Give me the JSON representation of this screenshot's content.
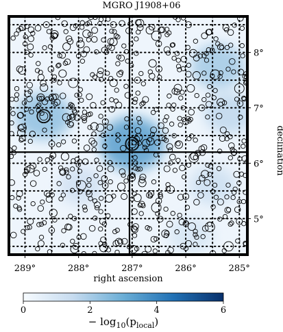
{
  "chart_data": {
    "type": "scatter",
    "title": "MGRO J1908+06",
    "xlabel": "right ascension",
    "ylabel": "declination",
    "xlim": [
      289.3,
      284.85
    ],
    "ylim": [
      4.35,
      8.65
    ],
    "x_ticks": [
      {
        "value": 289,
        "label": "289°"
      },
      {
        "value": 288,
        "label": "288°"
      },
      {
        "value": 287,
        "label": "287°"
      },
      {
        "value": 286,
        "label": "286°"
      },
      {
        "value": 285,
        "label": "285°"
      }
    ],
    "y_ticks": [
      {
        "value": 8,
        "label": "8°"
      },
      {
        "value": 7,
        "label": "7°"
      },
      {
        "value": 6,
        "label": "6°"
      },
      {
        "value": 5,
        "label": "5°"
      }
    ],
    "crosshair": {
      "ra": 287.05,
      "dec": 6.2
    },
    "grid": "dotted, 0.5° spacing",
    "marker": "open circle",
    "colorbar": {
      "label": "−log10(p_local)",
      "label_main": "− log",
      "label_sub": "10",
      "label_arg": "(p",
      "label_argsub": "local",
      "label_close": ")",
      "range": [
        0,
        6
      ],
      "ticks": [
        {
          "value": 0,
          "label": "0"
        },
        {
          "value": 2,
          "label": "2"
        },
        {
          "value": 4,
          "label": "4"
        },
        {
          "value": 6,
          "label": "6"
        }
      ],
      "colors": [
        "#f7fbff",
        "#c6dbef",
        "#6baed6",
        "#2171b5",
        "#08306b"
      ]
    },
    "significance_hotspots": [
      {
        "ra": 287.0,
        "dec": 6.35,
        "value": 3.4
      },
      {
        "ra": 288.65,
        "dec": 6.85,
        "value": 2.4
      },
      {
        "ra": 285.4,
        "dec": 7.75,
        "value": 2.1
      },
      {
        "ra": 285.2,
        "dec": 6.9,
        "value": 1.6
      },
      {
        "ra": 285.5,
        "dec": 5.6,
        "value": 1.3
      },
      {
        "ra": 287.95,
        "dec": 5.6,
        "value": 1.2
      },
      {
        "ra": 285.9,
        "dec": 4.7,
        "value": 1.0
      }
    ],
    "events": [
      {
        "ra": 289.05,
        "dec": 8.45,
        "size": 1
      },
      {
        "ra": 288.6,
        "dec": 8.5,
        "size": 1
      },
      {
        "ra": 288.45,
        "dec": 8.3,
        "size": 1
      },
      {
        "ra": 288.1,
        "dec": 8.45,
        "size": 1
      },
      {
        "ra": 287.7,
        "dec": 8.4,
        "size": 1
      },
      {
        "ra": 287.35,
        "dec": 8.5,
        "size": 1
      },
      {
        "ra": 287.4,
        "dec": 8.2,
        "size": 1
      },
      {
        "ra": 286.85,
        "dec": 8.45,
        "size": 1
      },
      {
        "ra": 286.55,
        "dec": 8.3,
        "size": 2
      },
      {
        "ra": 285.95,
        "dec": 8.5,
        "size": 1
      },
      {
        "ra": 285.65,
        "dec": 8.3,
        "size": 1
      },
      {
        "ra": 285.25,
        "dec": 8.45,
        "size": 1
      },
      {
        "ra": 288.9,
        "dec": 8.1,
        "size": 1
      },
      {
        "ra": 288.3,
        "dec": 7.95,
        "size": 1
      },
      {
        "ra": 287.85,
        "dec": 8.05,
        "size": 1
      },
      {
        "ra": 287.2,
        "dec": 7.9,
        "size": 1
      },
      {
        "ra": 286.35,
        "dec": 8.05,
        "size": 1
      },
      {
        "ra": 285.8,
        "dec": 7.9,
        "size": 1
      },
      {
        "ra": 285.35,
        "dec": 8.1,
        "size": 1
      },
      {
        "ra": 289.1,
        "dec": 7.7,
        "size": 1
      },
      {
        "ra": 288.7,
        "dec": 7.55,
        "size": 1
      },
      {
        "ra": 288.1,
        "dec": 7.45,
        "size": 2
      },
      {
        "ra": 287.6,
        "dec": 7.6,
        "size": 1
      },
      {
        "ra": 286.9,
        "dec": 7.5,
        "size": 1
      },
      {
        "ra": 286.5,
        "dec": 7.7,
        "size": 1
      },
      {
        "ra": 285.45,
        "dec": 7.6,
        "size": 2
      },
      {
        "ra": 285.0,
        "dec": 7.35,
        "size": 2
      },
      {
        "ra": 288.95,
        "dec": 7.25,
        "size": 1
      },
      {
        "ra": 288.4,
        "dec": 7.1,
        "size": 1
      },
      {
        "ra": 287.8,
        "dec": 7.2,
        "size": 1
      },
      {
        "ra": 287.25,
        "dec": 7.05,
        "size": 1
      },
      {
        "ra": 286.75,
        "dec": 7.15,
        "size": 1
      },
      {
        "ra": 286.2,
        "dec": 7.3,
        "size": 1
      },
      {
        "ra": 285.7,
        "dec": 7.0,
        "size": 1
      },
      {
        "ra": 288.65,
        "dec": 6.85,
        "size": 3
      },
      {
        "ra": 288.15,
        "dec": 6.7,
        "size": 1
      },
      {
        "ra": 287.5,
        "dec": 6.75,
        "size": 1
      },
      {
        "ra": 287.0,
        "dec": 6.35,
        "size": 3
      },
      {
        "ra": 286.6,
        "dec": 6.6,
        "size": 1
      },
      {
        "ra": 286.0,
        "dec": 6.75,
        "size": 1
      },
      {
        "ra": 285.3,
        "dec": 6.6,
        "size": 1
      },
      {
        "ra": 289.05,
        "dec": 6.45,
        "size": 1
      },
      {
        "ra": 288.5,
        "dec": 6.35,
        "size": 1
      },
      {
        "ra": 287.75,
        "dec": 6.4,
        "size": 1
      },
      {
        "ra": 286.3,
        "dec": 6.3,
        "size": 1
      },
      {
        "ra": 285.85,
        "dec": 6.1,
        "size": 2
      },
      {
        "ra": 285.1,
        "dec": 6.2,
        "size": 1
      },
      {
        "ra": 288.85,
        "dec": 5.95,
        "size": 1
      },
      {
        "ra": 288.3,
        "dec": 5.85,
        "size": 1
      },
      {
        "ra": 287.95,
        "dec": 5.6,
        "size": 2
      },
      {
        "ra": 287.4,
        "dec": 5.9,
        "size": 1
      },
      {
        "ra": 286.8,
        "dec": 5.75,
        "size": 1
      },
      {
        "ra": 286.35,
        "dec": 5.9,
        "size": 1
      },
      {
        "ra": 285.6,
        "dec": 5.65,
        "size": 1
      },
      {
        "ra": 285.05,
        "dec": 5.8,
        "size": 1
      },
      {
        "ra": 289.1,
        "dec": 5.45,
        "size": 1
      },
      {
        "ra": 288.55,
        "dec": 5.35,
        "size": 1
      },
      {
        "ra": 287.65,
        "dec": 5.25,
        "size": 1
      },
      {
        "ra": 287.15,
        "dec": 5.4,
        "size": 1
      },
      {
        "ra": 286.55,
        "dec": 5.2,
        "size": 2
      },
      {
        "ra": 286.0,
        "dec": 5.4,
        "size": 1
      },
      {
        "ra": 285.35,
        "dec": 5.3,
        "size": 1
      },
      {
        "ra": 288.9,
        "dec": 4.95,
        "size": 1
      },
      {
        "ra": 288.2,
        "dec": 4.85,
        "size": 1
      },
      {
        "ra": 287.55,
        "dec": 4.95,
        "size": 1
      },
      {
        "ra": 286.95,
        "dec": 4.8,
        "size": 1
      },
      {
        "ra": 286.3,
        "dec": 4.9,
        "size": 1
      },
      {
        "ra": 285.55,
        "dec": 4.85,
        "size": 2
      },
      {
        "ra": 285.0,
        "dec": 4.95,
        "size": 1
      },
      {
        "ra": 288.7,
        "dec": 4.55,
        "size": 1
      },
      {
        "ra": 288.05,
        "dec": 4.5,
        "size": 1
      },
      {
        "ra": 287.3,
        "dec": 4.55,
        "size": 1
      },
      {
        "ra": 286.7,
        "dec": 4.45,
        "size": 1
      },
      {
        "ra": 285.95,
        "dec": 4.55,
        "size": 1
      },
      {
        "ra": 285.2,
        "dec": 4.5,
        "size": 2
      }
    ],
    "background_event_density": "dense field of small open circles (~600 events)"
  }
}
